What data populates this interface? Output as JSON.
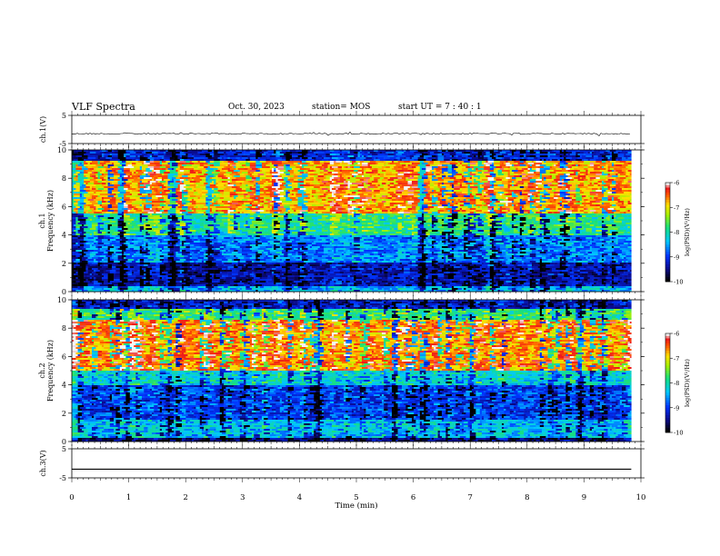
{
  "header": {
    "title": "VLF Spectra",
    "date": "Oct. 30, 2023",
    "station": "station= MOS",
    "start": "start  UT  =   7 : 40 : 1"
  },
  "chart_data": {
    "type": "heatmap",
    "title": "VLF Spectra",
    "xlabel": "Time  (min)",
    "x_ticks": [
      "0",
      "1",
      "2",
      "3",
      "4",
      "5",
      "6",
      "7",
      "8",
      "9",
      "10"
    ],
    "xlim": [
      0,
      10
    ],
    "data_end_min": 9.83,
    "panels": [
      {
        "name": "ch.1(V)",
        "type": "line",
        "ylabel": "ch.1(V)",
        "ylim": [
          -5,
          5
        ],
        "y_ticks": [
          "5",
          "-5"
        ],
        "baseline": -1.5,
        "noisy": true
      },
      {
        "name": "ch.1",
        "type": "heatmap",
        "ylabel_line1": "ch.1",
        "ylabel_line2": "Frequency (kHz)",
        "ylim": [
          0,
          10
        ],
        "y_ticks": [
          "0",
          "2",
          "4",
          "6",
          "8",
          "10"
        ],
        "colorbar": {
          "min": -10,
          "max": -6,
          "ticks": [
            "-6",
            "-7",
            "-8",
            "-9",
            "-10"
          ],
          "label": "log(PSD)(V²/Hz)"
        },
        "bands": [
          {
            "from": 0,
            "to": 0.4,
            "level": -8.5
          },
          {
            "from": 0.4,
            "to": 2.0,
            "level": -9.4
          },
          {
            "from": 2.0,
            "to": 4.0,
            "level": -8.7
          },
          {
            "from": 4.0,
            "to": 5.5,
            "level": -7.9
          },
          {
            "from": 5.5,
            "to": 9.2,
            "level": -6.7
          },
          {
            "from": 9.2,
            "to": 10,
            "level": -9.2
          }
        ]
      },
      {
        "name": "ch.2",
        "type": "heatmap",
        "ylabel_line1": "ch.2",
        "ylabel_line2": "Frequency (kHz)",
        "ylim": [
          0,
          10
        ],
        "y_ticks": [
          "0",
          "2",
          "4",
          "6",
          "8",
          "10"
        ],
        "colorbar": {
          "min": -10,
          "max": -6,
          "ticks": [
            "-6",
            "-7",
            "-8",
            "-9",
            "-10"
          ],
          "label": "log(PSD)(V²/Hz)"
        },
        "bands": [
          {
            "from": 0,
            "to": 0.3,
            "level": -9.6
          },
          {
            "from": 0.3,
            "to": 1.6,
            "level": -8.4
          },
          {
            "from": 1.6,
            "to": 4.0,
            "level": -9.0
          },
          {
            "from": 4.0,
            "to": 5.0,
            "level": -8.2
          },
          {
            "from": 5.0,
            "to": 8.6,
            "level": -6.6
          },
          {
            "from": 8.6,
            "to": 9.4,
            "level": -7.8
          },
          {
            "from": 9.4,
            "to": 10,
            "level": -9.3
          }
        ]
      },
      {
        "name": "ch.3(V)",
        "type": "line",
        "ylabel": "ch.3(V)",
        "ylim": [
          -5,
          5
        ],
        "y_ticks": [
          "5",
          "-5"
        ],
        "baseline": -2.0,
        "noisy": false
      }
    ]
  }
}
